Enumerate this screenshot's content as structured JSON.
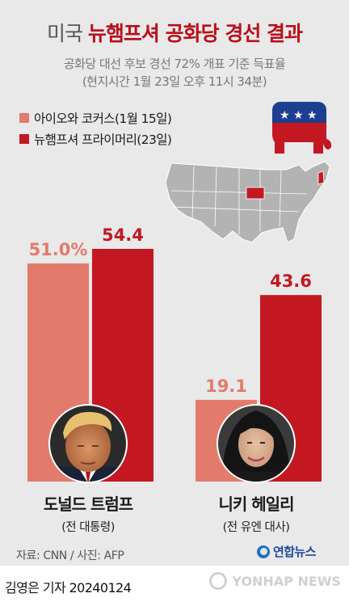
{
  "header": {
    "title_light": "미국",
    "title_bold": "뉴햄프셔 공화당 경선 결과",
    "subtitle_line1": "공화당 대선 후보 경선 72% 개표 기준 득표율",
    "subtitle_line2": "(현지시간 1월 23일 오후 11시 34분)"
  },
  "colors": {
    "iowa": "#e37b6c",
    "nh": "#c31822",
    "map_land": "#b3b3b3",
    "map_border": "#ffffff",
    "map_highlight": "#c31822"
  },
  "icons": {
    "party_logo": "republican-elephant-icon",
    "map": "us-map-icon"
  },
  "chart_data": {
    "type": "bar",
    "title": "공화당 대선 후보 경선 72% 개표 기준 득표율",
    "categories": [
      "도널드 트럼프",
      "니키 헤일리"
    ],
    "series": [
      {
        "name": "아이오와 코커스(1월 15일)",
        "values": [
          51.0,
          19.1
        ],
        "labels": [
          "51.0%",
          "19.1"
        ]
      },
      {
        "name": "뉴햄프셔 프라이머리(23일)",
        "values": [
          54.4,
          43.6
        ],
        "labels": [
          "54.4",
          "43.6"
        ]
      }
    ],
    "legend_position": "top-left",
    "grid": false
  },
  "candidates": [
    {
      "name": "도널드 트럼프",
      "role": "(전 대통령)",
      "photo": "trump-portrait"
    },
    {
      "name": "니키 헤일리",
      "role": "(전 유엔 대사)",
      "photo": "haley-portrait"
    }
  ],
  "footer": {
    "source": "자료: CNN / 사진: AFP",
    "logo_text": "연합뉴스",
    "byline": "김영은 기자  20240124",
    "agency": "YONHAP NEWS"
  }
}
